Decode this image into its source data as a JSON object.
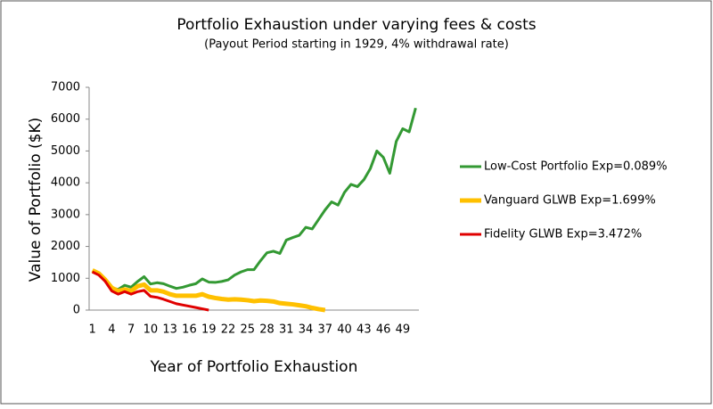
{
  "chart_data": {
    "type": "line",
    "title": "Portfolio Exhaustion under varying fees & costs",
    "subtitle": "(Payout Period starting in 1929, 4% withdrawal rate)",
    "x_label": "Year of Portfolio Exhaustion",
    "y_label": "Value of Portfolio  ($K)",
    "categories": [
      "1",
      null,
      null,
      "4",
      null,
      null,
      "7",
      null,
      null,
      "10",
      null,
      null,
      "13",
      null,
      null,
      "16",
      null,
      null,
      "19",
      null,
      null,
      "22",
      null,
      null,
      "25",
      null,
      null,
      "28",
      null,
      null,
      "31",
      null,
      null,
      "34",
      null,
      null,
      "37",
      null,
      null,
      "40",
      null,
      null,
      "43",
      null,
      null,
      "46",
      null,
      null,
      "49",
      null,
      null
    ],
    "series": [
      {
        "name": "Low-Cost Portfolio Exp=0.089%",
        "color": "#339933",
        "width": 3,
        "values": [
          1200,
          1150,
          950,
          700,
          650,
          780,
          720,
          900,
          1050,
          820,
          860,
          830,
          750,
          680,
          720,
          780,
          830,
          980,
          880,
          870,
          900,
          950,
          1100,
          1200,
          1270,
          1270,
          1550,
          1800,
          1850,
          1780,
          2200,
          2280,
          2350,
          2600,
          2550,
          2850,
          3150,
          3400,
          3300,
          3700,
          3950,
          3880,
          4100,
          4450,
          5000,
          4800,
          4300,
          5300,
          5700,
          5600,
          6350
        ]
      },
      {
        "name": "Vanguard GLWB Exp=1.699%",
        "color": "#ffc000",
        "width": 5,
        "values": [
          1250,
          1150,
          950,
          700,
          600,
          650,
          600,
          750,
          800,
          620,
          620,
          580,
          500,
          450,
          450,
          450,
          450,
          500,
          420,
          380,
          350,
          330,
          340,
          330,
          310,
          280,
          300,
          290,
          270,
          220,
          200,
          180,
          150,
          120,
          70,
          30,
          0,
          null,
          null,
          null,
          null,
          null,
          null,
          null,
          null,
          null,
          null,
          null,
          null,
          null,
          null
        ]
      },
      {
        "name": "Fidelity GLWB Exp=3.472%",
        "color": "#e00000",
        "width": 3,
        "values": [
          1200,
          1100,
          900,
          600,
          500,
          580,
          500,
          580,
          620,
          430,
          400,
          340,
          270,
          200,
          160,
          120,
          80,
          40,
          0,
          null,
          null,
          null,
          null,
          null,
          null,
          null,
          null,
          null,
          null,
          null,
          null,
          null,
          null,
          null,
          null,
          null,
          null,
          null,
          null,
          null,
          null,
          null,
          null,
          null,
          null,
          null,
          null,
          null,
          null,
          null,
          null
        ]
      }
    ],
    "ylim": [
      0,
      7000
    ],
    "yticks": [
      0,
      1000,
      2000,
      3000,
      4000,
      5000,
      6000,
      7000
    ]
  }
}
